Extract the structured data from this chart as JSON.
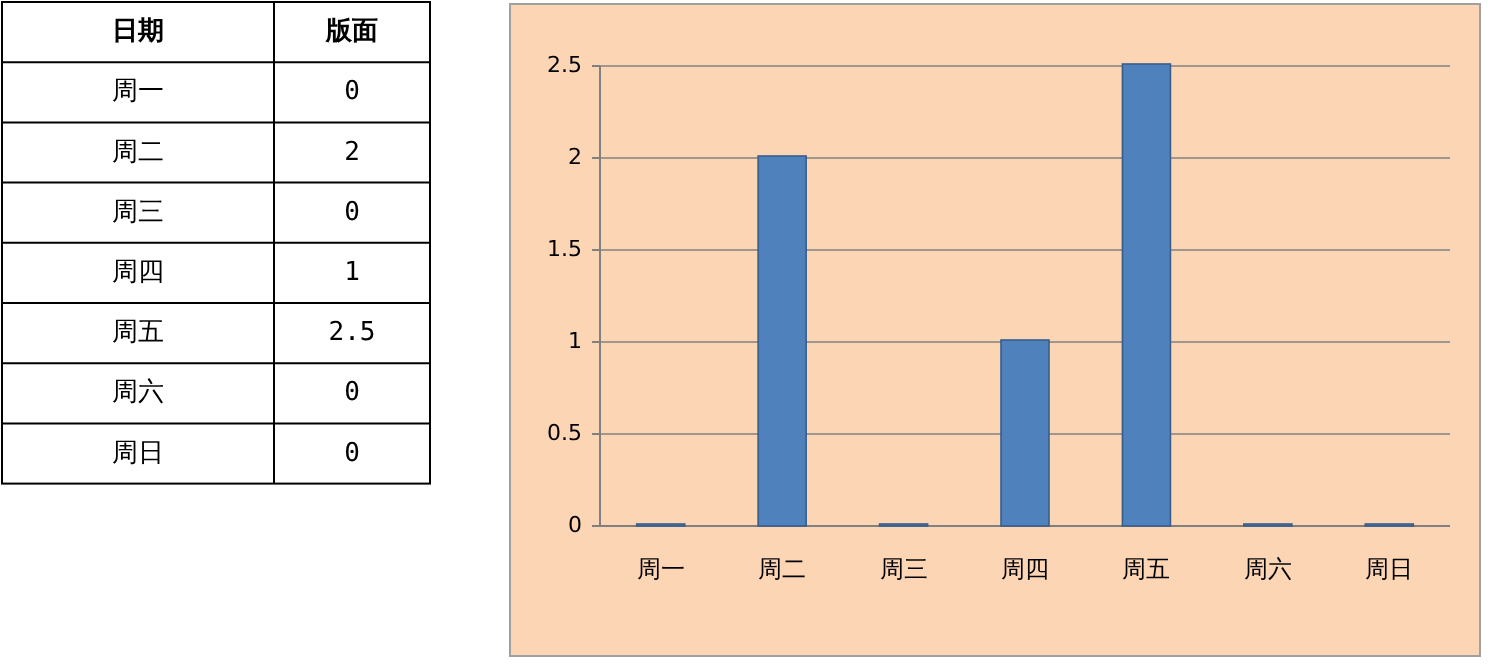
{
  "chart_data": [
    {
      "type": "other",
      "annotations": [
        "日期",
        "版面"
      ],
      "categories": [
        "周一",
        "周二",
        "周三",
        "周四",
        "周五",
        "周六",
        "周日"
      ],
      "value_labels": [
        "0",
        "2",
        "0",
        "1",
        "2.5",
        "0",
        "0"
      ]
    },
    {
      "type": "bar",
      "categories": [
        "周一",
        "周二",
        "周三",
        "周四",
        "周五",
        "周六",
        "周日"
      ],
      "series": [
        {
          "color": "#4f81bd",
          "values": [
            0,
            2,
            0,
            1,
            2.5,
            0,
            0
          ]
        }
      ],
      "ylim": [
        0,
        2.5
      ],
      "yticks": [
        0,
        0.5,
        1,
        1.5,
        2,
        2.5
      ],
      "grid": "y"
    }
  ]
}
